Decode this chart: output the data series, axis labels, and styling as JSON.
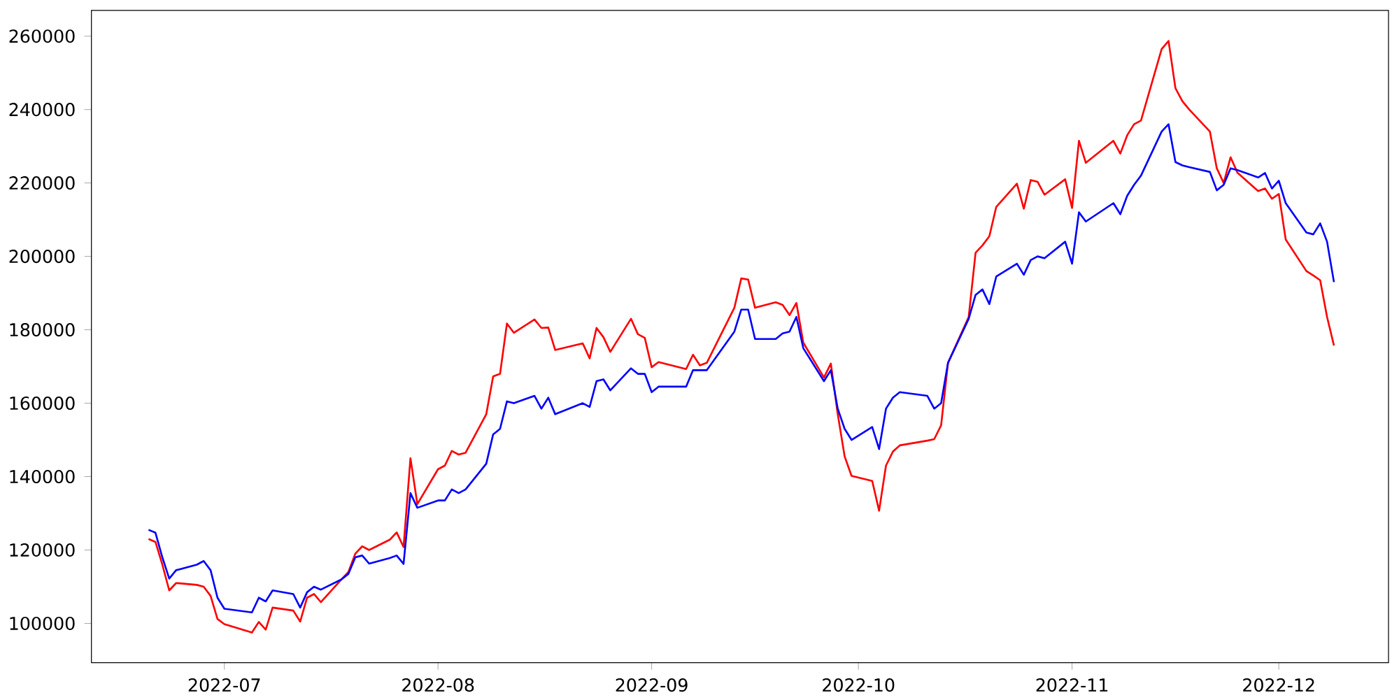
{
  "chart_data": {
    "type": "line",
    "x": [
      "2022-06-20",
      "2022-06-21",
      "2022-06-22",
      "2022-06-23",
      "2022-06-24",
      "2022-06-27",
      "2022-06-28",
      "2022-06-29",
      "2022-06-30",
      "2022-07-01",
      "2022-07-05",
      "2022-07-06",
      "2022-07-07",
      "2022-07-08",
      "2022-07-11",
      "2022-07-12",
      "2022-07-13",
      "2022-07-14",
      "2022-07-15",
      "2022-07-18",
      "2022-07-19",
      "2022-07-20",
      "2022-07-21",
      "2022-07-22",
      "2022-07-25",
      "2022-07-26",
      "2022-07-27",
      "2022-07-28",
      "2022-07-29",
      "2022-08-01",
      "2022-08-02",
      "2022-08-03",
      "2022-08-04",
      "2022-08-05",
      "2022-08-08",
      "2022-08-09",
      "2022-08-10",
      "2022-08-11",
      "2022-08-12",
      "2022-08-15",
      "2022-08-16",
      "2022-08-17",
      "2022-08-18",
      "2022-08-22",
      "2022-08-23",
      "2022-08-24",
      "2022-08-25",
      "2022-08-26",
      "2022-08-29",
      "2022-08-30",
      "2022-08-31",
      "2022-09-01",
      "2022-09-02",
      "2022-09-06",
      "2022-09-07",
      "2022-09-08",
      "2022-09-09",
      "2022-09-13",
      "2022-09-14",
      "2022-09-15",
      "2022-09-16",
      "2022-09-19",
      "2022-09-20",
      "2022-09-21",
      "2022-09-22",
      "2022-09-23",
      "2022-09-26",
      "2022-09-27",
      "2022-09-28",
      "2022-09-29",
      "2022-09-30",
      "2022-10-03",
      "2022-10-04",
      "2022-10-05",
      "2022-10-06",
      "2022-10-07",
      "2022-10-11",
      "2022-10-12",
      "2022-10-13",
      "2022-10-14",
      "2022-10-17",
      "2022-10-18",
      "2022-10-19",
      "2022-10-20",
      "2022-10-21",
      "2022-10-24",
      "2022-10-25",
      "2022-10-26",
      "2022-10-27",
      "2022-10-28",
      "2022-10-31",
      "2022-11-01",
      "2022-11-02",
      "2022-11-03",
      "2022-11-07",
      "2022-11-08",
      "2022-11-09",
      "2022-11-10",
      "2022-11-11",
      "2022-11-14",
      "2022-11-15",
      "2022-11-16",
      "2022-11-17",
      "2022-11-18",
      "2022-11-21",
      "2022-11-22",
      "2022-11-23",
      "2022-11-24",
      "2022-11-25",
      "2022-11-28",
      "2022-11-29",
      "2022-11-30",
      "2022-12-01",
      "2022-12-02",
      "2022-12-05",
      "2022-12-06",
      "2022-12-07",
      "2022-12-08",
      "2022-12-09"
    ],
    "series": [
      {
        "color": "#ff0000",
        "values": [
          123000,
          122200,
          116000,
          109000,
          111000,
          110500,
          110000,
          107500,
          101200,
          99800,
          97500,
          100400,
          98300,
          104300,
          103500,
          100500,
          107000,
          108000,
          105800,
          112000,
          114000,
          119000,
          121000,
          120000,
          122800,
          124800,
          120800,
          145000,
          132500,
          142000,
          143000,
          147000,
          146000,
          146500,
          157000,
          167300,
          168000,
          181700,
          179200,
          182800,
          180500,
          180600,
          174500,
          176300,
          172200,
          180500,
          178000,
          174000,
          183000,
          178800,
          177800,
          169800,
          171200,
          169300,
          173200,
          170300,
          171000,
          186000,
          194000,
          193700,
          186000,
          187500,
          186800,
          184000,
          187300,
          176500,
          167000,
          170800,
          157000,
          145500,
          140200,
          138800,
          130700,
          143000,
          146800,
          148500,
          149800,
          150200,
          154000,
          171000,
          183500,
          201000,
          203000,
          205500,
          213500,
          219800,
          213000,
          220800,
          220300,
          216800,
          221000,
          213200,
          231500,
          225500,
          231500,
          228000,
          233000,
          236000,
          237000,
          256500,
          258700,
          245800,
          242300,
          240000,
          234000,
          224000,
          220000,
          227000,
          222800,
          217800,
          218500,
          215700,
          217000,
          204600,
          196000,
          194800,
          193500,
          183500,
          175700
        ]
      },
      {
        "color": "#0000ff",
        "values": [
          125500,
          124700,
          118000,
          112200,
          114500,
          116000,
          117000,
          114500,
          107000,
          104000,
          103000,
          107000,
          106000,
          109000,
          108000,
          104300,
          108500,
          110000,
          109200,
          112000,
          113500,
          118000,
          118500,
          116300,
          117800,
          118500,
          116200,
          135500,
          131500,
          133500,
          133500,
          136500,
          135500,
          136500,
          143500,
          151500,
          153000,
          160500,
          160000,
          162000,
          158500,
          161500,
          157000,
          160000,
          159000,
          166000,
          166500,
          163500,
          169500,
          168000,
          168000,
          163000,
          164500,
          164500,
          169000,
          169000,
          169000,
          179500,
          185500,
          185500,
          177500,
          177500,
          179000,
          179500,
          183500,
          175000,
          166000,
          169000,
          158500,
          153000,
          150000,
          153500,
          147500,
          158500,
          161500,
          163000,
          162000,
          158500,
          160000,
          171000,
          183000,
          189500,
          191000,
          187000,
          194500,
          198000,
          195000,
          199000,
          200000,
          199500,
          204000,
          198000,
          212000,
          209500,
          214500,
          211500,
          216500,
          219500,
          222000,
          234000,
          236000,
          225700,
          224800,
          224300,
          223000,
          218000,
          219500,
          224000,
          223500,
          221500,
          222700,
          218500,
          220600,
          214500,
          206500,
          206000,
          209000,
          204000,
          193000
        ]
      }
    ],
    "xlim": [
      "2022-06-11T17:00",
      "2022-12-16T22:00"
    ],
    "xticks": [
      {
        "value": "2022-07-01",
        "label": "2022-07"
      },
      {
        "value": "2022-08-01",
        "label": "2022-08"
      },
      {
        "value": "2022-09-01",
        "label": "2022-09"
      },
      {
        "value": "2022-10-01",
        "label": "2022-10"
      },
      {
        "value": "2022-11-01",
        "label": "2022-11"
      },
      {
        "value": "2022-12-01",
        "label": "2022-12"
      }
    ],
    "ylim": [
      89300,
      267000
    ],
    "yticks": [
      100000,
      120000,
      140000,
      160000,
      180000,
      200000,
      220000,
      240000,
      260000
    ]
  }
}
